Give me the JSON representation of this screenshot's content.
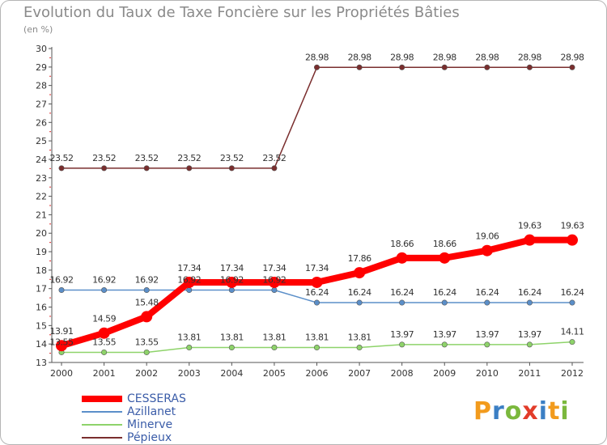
{
  "title": "Evolution du Taux de Taxe Foncière sur les Propriétés Bâties",
  "unit_label": "(en %)",
  "brand": {
    "letters": [
      "P",
      "r",
      "o",
      "x",
      "i",
      "t",
      "i"
    ],
    "colors": [
      "#f29b1d",
      "#3b7fc4",
      "#7bb83d",
      "#e23c2a",
      "#3b7fc4",
      "#f29b1d",
      "#7bb83d"
    ]
  },
  "chart_data": {
    "type": "line",
    "title": "Evolution du Taux de Taxe Foncière sur les Propriétés Bâties",
    "ylabel": "(en %)",
    "xlabel": "",
    "x": [
      "2000",
      "2001",
      "2002",
      "2003",
      "2004",
      "2005",
      "2006",
      "2007",
      "2008",
      "2009",
      "2010",
      "2011",
      "2012"
    ],
    "ylim": [
      13,
      30
    ],
    "yticks": [
      "13",
      "14",
      "15",
      "16",
      "17",
      "18",
      "19",
      "20",
      "21",
      "22",
      "23",
      "24",
      "25",
      "26",
      "27",
      "28",
      "29",
      "30"
    ],
    "grid": false,
    "legend_position": "bottom-left",
    "series": [
      {
        "name": "CESSERAS",
        "color": "#ff0000",
        "values": [
          13.91,
          14.59,
          15.48,
          17.34,
          17.34,
          17.34,
          17.34,
          17.86,
          18.66,
          18.66,
          19.06,
          19.63,
          19.63
        ],
        "labels": [
          "13.91",
          "14.59",
          "15.48",
          "17.34",
          "17.34",
          "17.34",
          "17.34",
          "17.86",
          "18.66",
          "18.66",
          "19.06",
          "19.63",
          "19.63"
        ]
      },
      {
        "name": "Azillanet",
        "color": "#5b8fc9",
        "values": [
          16.92,
          16.92,
          16.92,
          16.92,
          16.92,
          16.92,
          16.24,
          16.24,
          16.24,
          16.24,
          16.24,
          16.24,
          16.24
        ],
        "labels": [
          "16.92",
          "16.92",
          "16.92",
          "16.92",
          "16.92",
          "16.92",
          "16.24",
          "16.24",
          "16.24",
          "16.24",
          "16.24",
          "16.24",
          "16.24"
        ]
      },
      {
        "name": "Minerve",
        "color": "#8ed36a",
        "values": [
          13.55,
          13.55,
          13.55,
          13.81,
          13.81,
          13.81,
          13.81,
          13.81,
          13.97,
          13.97,
          13.97,
          13.97,
          14.11
        ],
        "labels": [
          "13.55",
          "13.55",
          "13.55",
          "13.81",
          "13.81",
          "13.81",
          "13.81",
          "13.81",
          "13.97",
          "13.97",
          "13.97",
          "13.97",
          "14.11"
        ]
      },
      {
        "name": "Pépieux",
        "color": "#7a2e2e",
        "values": [
          23.52,
          23.52,
          23.52,
          23.52,
          23.52,
          23.52,
          28.98,
          28.98,
          28.98,
          28.98,
          28.98,
          28.98,
          28.98
        ],
        "labels": [
          "23.52",
          "23.52",
          "23.52",
          "23.52",
          "23.52",
          "23.52",
          "28.98",
          "28.98",
          "28.98",
          "28.98",
          "28.98",
          "28.98",
          "28.98"
        ]
      }
    ]
  }
}
